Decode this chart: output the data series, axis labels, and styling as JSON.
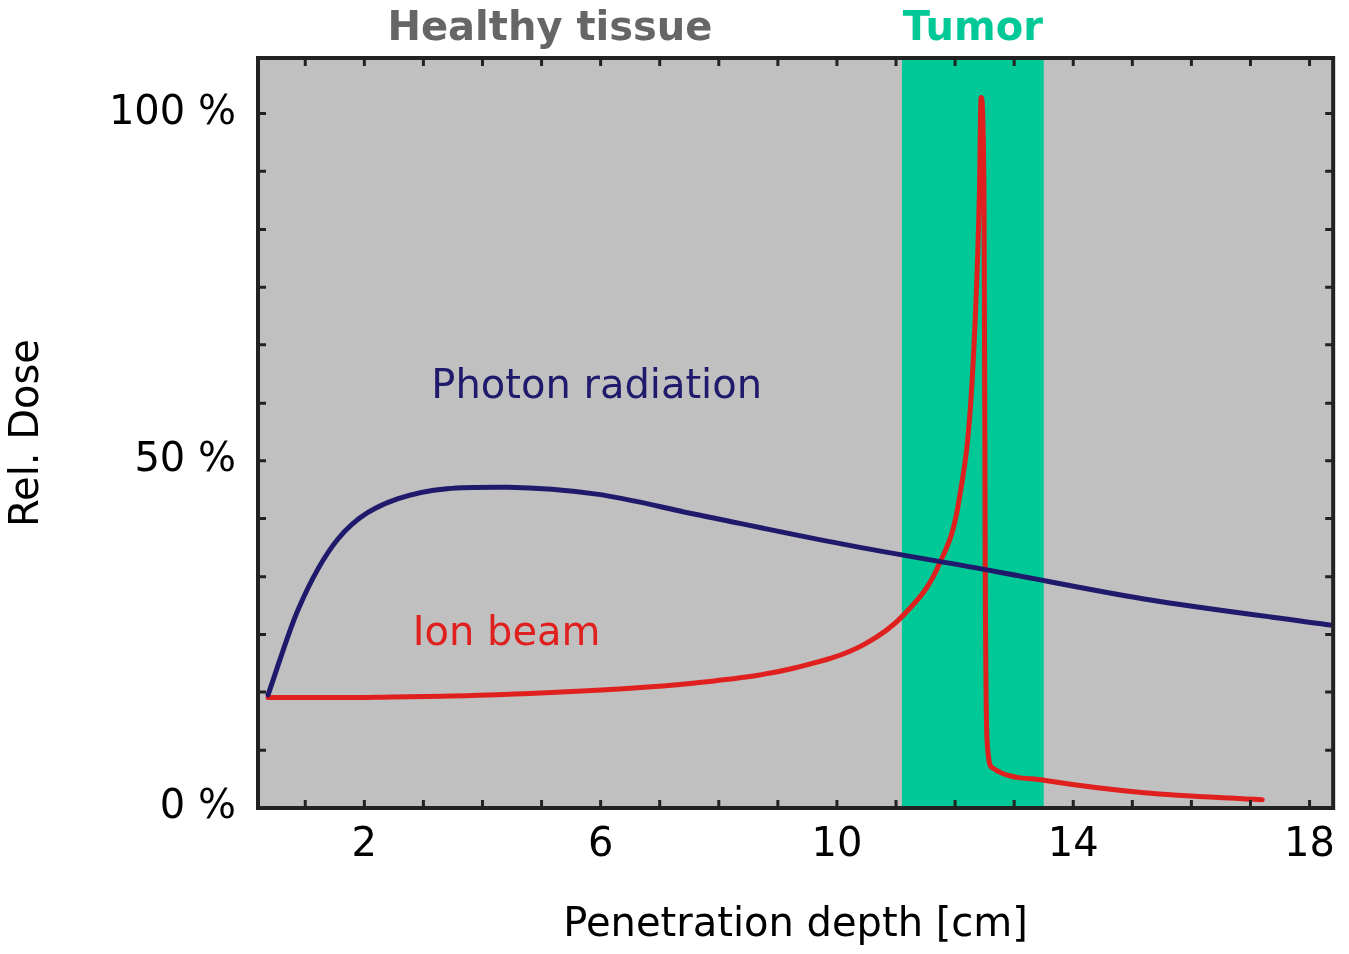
{
  "chart_data": {
    "type": "line",
    "xlabel": "Penetration depth [cm]",
    "ylabel": "Rel. Dose",
    "xlim": [
      0.2,
      18.4
    ],
    "ylim": [
      0,
      108
    ],
    "xticks": [
      {
        "value": 1,
        "label": null
      },
      {
        "value": 2,
        "label": "2"
      },
      {
        "value": 3,
        "label": null
      },
      {
        "value": 4,
        "label": null
      },
      {
        "value": 5,
        "label": null
      },
      {
        "value": 6,
        "label": "6"
      },
      {
        "value": 7,
        "label": null
      },
      {
        "value": 8,
        "label": null
      },
      {
        "value": 9,
        "label": null
      },
      {
        "value": 10,
        "label": "10"
      },
      {
        "value": 11,
        "label": null
      },
      {
        "value": 12,
        "label": null
      },
      {
        "value": 13,
        "label": null
      },
      {
        "value": 14,
        "label": "14"
      },
      {
        "value": 15,
        "label": null
      },
      {
        "value": 16,
        "label": null
      },
      {
        "value": 17,
        "label": null
      },
      {
        "value": 18,
        "label": "18"
      }
    ],
    "yticks": [
      {
        "value": 0,
        "label": "0 %"
      },
      {
        "value": 8.3,
        "label": null
      },
      {
        "value": 16.7,
        "label": null
      },
      {
        "value": 25,
        "label": null
      },
      {
        "value": 33.3,
        "label": null
      },
      {
        "value": 41.7,
        "label": null
      },
      {
        "value": 50,
        "label": "50 %"
      },
      {
        "value": 58.3,
        "label": null
      },
      {
        "value": 66.7,
        "label": null
      },
      {
        "value": 75,
        "label": null
      },
      {
        "value": 83.3,
        "label": null
      },
      {
        "value": 91.7,
        "label": null
      },
      {
        "value": 100,
        "label": "100 %"
      }
    ],
    "legend": false,
    "marker": "none",
    "line_style": "solid",
    "bands": [
      {
        "axis": "x",
        "from": 11.1,
        "to": 13.5,
        "label": "Tumor",
        "color": "#00c896"
      }
    ],
    "annotations": [
      "Healthy tissue"
    ],
    "series": [
      {
        "name": "Photon radiation",
        "color": "#1f1a6b",
        "x": [
          0.37,
          0.88,
          1.55,
          2.56,
          4.24,
          5.93,
          7.6,
          10.1,
          12.66,
          15.2,
          18.4
        ],
        "values": [
          16.3,
          28.6,
          38.7,
          44.5,
          46.2,
          45.2,
          42.3,
          38,
          34.1,
          30.1,
          26.3
        ]
      },
      {
        "name": "Ion beam",
        "color": "#e0201e",
        "x": [
          0.37,
          1.5,
          2.5,
          3.3,
          4.24,
          7.6,
          9.3,
          10.47,
          11.14,
          11.73,
          12.07,
          12.29,
          12.41,
          12.44,
          12.49,
          12.51,
          12.54,
          12.63,
          13.5,
          15.2,
          17.2
        ],
        "values": [
          15.9,
          15.9,
          16,
          16.1,
          16.3,
          18,
          20.2,
          23.6,
          27.9,
          35.1,
          44.5,
          61.8,
          87.9,
          102.3,
          87.9,
          34.4,
          9.8,
          5.8,
          4,
          2.2,
          1.2
        ]
      }
    ]
  }
}
